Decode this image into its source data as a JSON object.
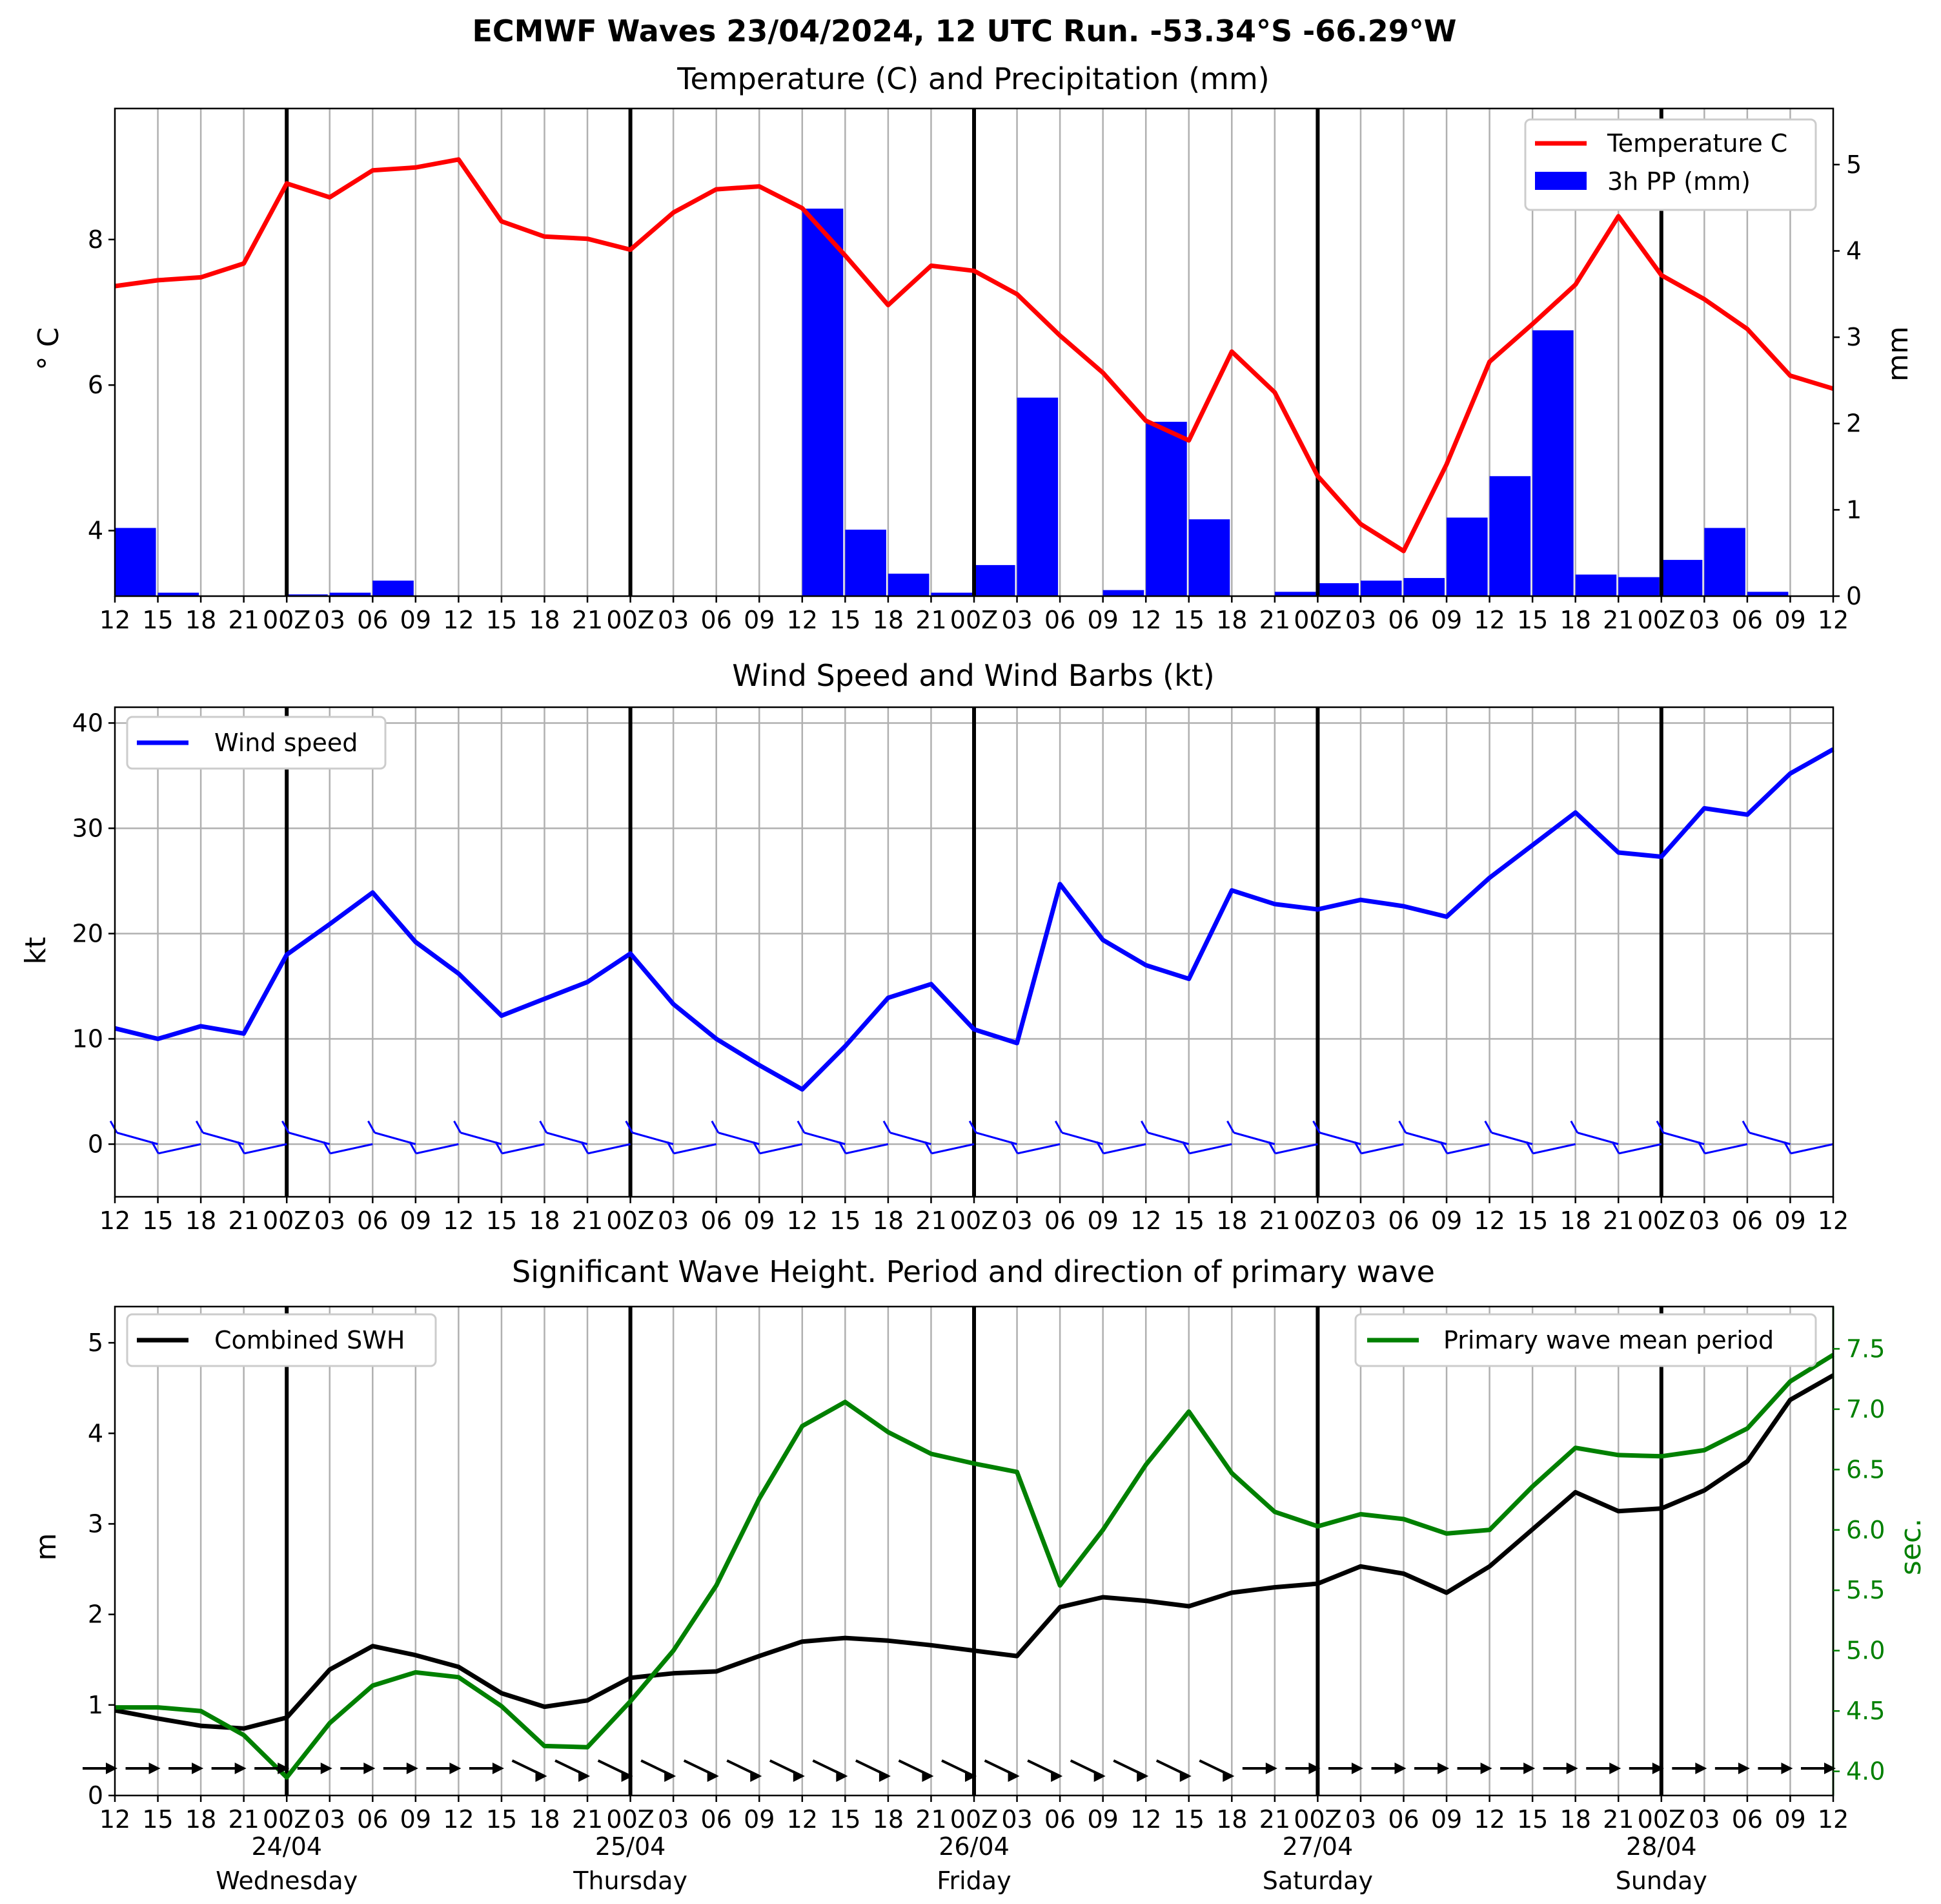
{
  "suptitle": "ECMWF Waves 23/04/2024, 12 UTC Run. -53.34°S -66.29°W",
  "colors": {
    "temperature": "#ff0000",
    "precip": "#0000ff",
    "wind": "#0000ff",
    "swh": "#000000",
    "period": "#008000",
    "grid": "#b0b0b0"
  },
  "time_tick_labels": [
    "12",
    "15",
    "18",
    "21",
    "00Z",
    "03",
    "06",
    "09",
    "12",
    "15",
    "18",
    "21",
    "00Z",
    "03",
    "06",
    "09",
    "12",
    "15",
    "18",
    "21",
    "00Z",
    "03",
    "06",
    "09",
    "12",
    "15",
    "18",
    "21",
    "00Z",
    "03",
    "06",
    "09",
    "12",
    "15",
    "18",
    "21",
    "00Z",
    "03",
    "06",
    "09",
    "12"
  ],
  "day_labels": [
    {
      "date": "24/04",
      "day": "Wednesday"
    },
    {
      "date": "25/04",
      "day": "Thursday"
    },
    {
      "date": "26/04",
      "day": "Friday"
    },
    {
      "date": "27/04",
      "day": "Saturday"
    },
    {
      "date": "28/04",
      "day": "Sunday"
    }
  ],
  "chart_data": [
    {
      "type": "line+bar",
      "title": "Temperature (C) and Precipitation (mm)",
      "xlabel": "",
      "ylabel": "$^\\circ$C",
      "ylabel_display": "° C",
      "ylabel_right": "mm",
      "ylim": [
        3.1,
        9.8
      ],
      "ylim_right": [
        0,
        5.65
      ],
      "yticks": [
        4,
        6,
        8
      ],
      "yticks_right": [
        0,
        1,
        2,
        3,
        4,
        5
      ],
      "grid": "vertical",
      "legend_position": "top-right",
      "series": [
        {
          "name": "Temperature C",
          "kind": "line",
          "values": [
            7.36,
            7.44,
            7.48,
            7.67,
            8.77,
            8.58,
            8.95,
            8.99,
            9.1,
            8.25,
            8.04,
            8.01,
            7.86,
            8.37,
            8.69,
            8.73,
            8.43,
            7.78,
            7.1,
            7.64,
            7.57,
            7.25,
            6.68,
            6.17,
            5.51,
            5.24,
            6.46,
            5.9,
            4.75,
            4.09,
            3.72,
            4.91,
            6.32,
            6.84,
            7.38,
            8.32,
            7.51,
            7.18,
            6.77,
            6.13,
            5.95
          ]
        },
        {
          "name": "3h PP (mm)",
          "kind": "bar",
          "values": [
            0.79,
            0.04,
            0,
            0,
            0.02,
            0.04,
            0.18,
            0,
            0,
            0,
            0,
            0,
            0,
            0,
            0,
            0,
            4.49,
            0.77,
            0.26,
            0.04,
            0.36,
            2.3,
            0,
            0.07,
            2.02,
            0.89,
            0,
            0.05,
            0.15,
            0.18,
            0.21,
            0.91,
            1.39,
            3.08,
            0.25,
            0.22,
            0.42,
            0.79,
            0.05,
            0
          ]
        }
      ]
    },
    {
      "type": "line",
      "title": "Wind Speed and Wind Barbs (kt)",
      "xlabel": "",
      "ylabel": "kt",
      "ylim": [
        -5,
        41.5
      ],
      "yticks": [
        0,
        10,
        20,
        30,
        40
      ],
      "grid": "both",
      "legend_position": "top-left",
      "series": [
        {
          "name": "Wind speed",
          "values": [
            11,
            10,
            11.2,
            10.5,
            18,
            20.9,
            23.9,
            19.2,
            16.2,
            12.2,
            13.8,
            15.4,
            18.1,
            13.3,
            10,
            7.5,
            5.2,
            9.3,
            13.9,
            15.2,
            10.9,
            9.6,
            24.7,
            19.4,
            17,
            15.7,
            24.1,
            22.8,
            22.3,
            23.2,
            22.6,
            21.6,
            25.3,
            28.4,
            31.5,
            27.7,
            27.3,
            31.9,
            31.3,
            35.2,
            37.5
          ]
        }
      ]
    },
    {
      "type": "line",
      "title": "Significant Wave Height. Period and direction of primary wave",
      "xlabel": "",
      "ylabel": "m",
      "ylabel_right": "sec.",
      "ylim": [
        0,
        5.4
      ],
      "ylim_right": [
        3.8,
        7.85
      ],
      "yticks": [
        0,
        1,
        2,
        3,
        4,
        5
      ],
      "yticks_right": [
        "4.0",
        "4.5",
        "5.0",
        "5.5",
        "6.0",
        "6.5",
        "7.0",
        "7.5"
      ],
      "grid": "vertical",
      "legend_position": "top-left / top-right",
      "series": [
        {
          "name": "Combined SWH",
          "axis": "left",
          "values": [
            0.94,
            0.85,
            0.77,
            0.74,
            0.86,
            1.39,
            1.65,
            1.55,
            1.42,
            1.13,
            0.98,
            1.05,
            1.3,
            1.35,
            1.37,
            1.54,
            1.7,
            1.74,
            1.71,
            1.66,
            1.6,
            1.54,
            2.08,
            2.19,
            2.15,
            2.09,
            2.24,
            2.3,
            2.34,
            2.53,
            2.45,
            2.24,
            2.53,
            2.94,
            3.35,
            3.14,
            3.17,
            3.37,
            3.69,
            4.37,
            4.64
          ]
        },
        {
          "name": "Primary wave mean period",
          "axis": "right",
          "values": [
            4.53,
            4.53,
            4.5,
            4.3,
            3.95,
            4.4,
            4.71,
            4.82,
            4.78,
            4.54,
            4.21,
            4.2,
            4.58,
            5.0,
            5.54,
            6.26,
            6.86,
            7.06,
            6.81,
            6.63,
            6.55,
            6.48,
            5.54,
            6.0,
            6.54,
            6.98,
            6.47,
            6.15,
            6.03,
            6.13,
            6.09,
            5.97,
            6.0,
            6.36,
            6.68,
            6.62,
            6.61,
            6.66,
            6.84,
            7.23,
            7.45
          ]
        }
      ]
    }
  ]
}
